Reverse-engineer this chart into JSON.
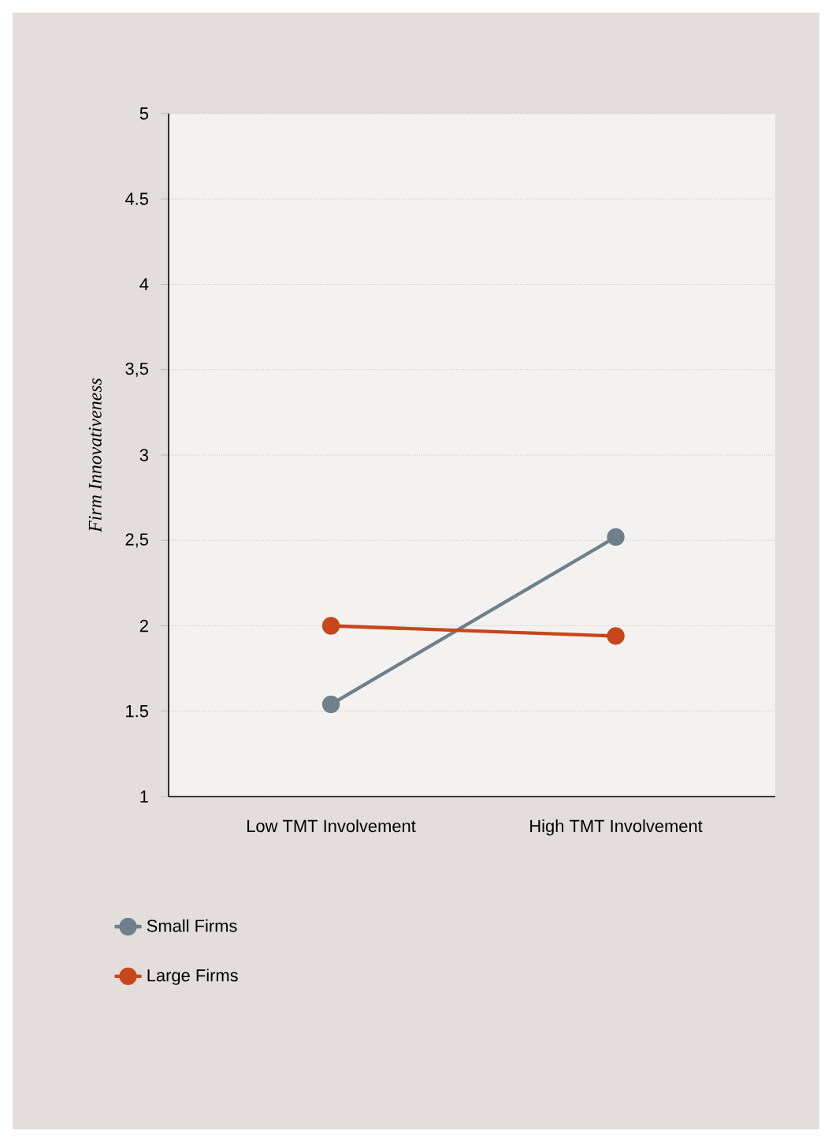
{
  "chart_data": {
    "type": "line",
    "ylabel": "Firm Innovativeness",
    "categories": [
      "Low TMT Involvement",
      "High TMT Involvement"
    ],
    "series": [
      {
        "name": "Small Firms",
        "color": "#6e808b",
        "values": [
          1.54,
          2.52
        ]
      },
      {
        "name": "Large Firms",
        "color": "#c8461c",
        "values": [
          2.0,
          1.94
        ]
      }
    ],
    "ylim": [
      1,
      5
    ],
    "yticks": [
      1,
      1.5,
      2,
      {
        "value": 2.5,
        "label": "2,5"
      },
      3,
      {
        "value": 3.5,
        "label": "3,5"
      },
      4,
      4.5,
      5
    ],
    "grid": "y",
    "legend": "bottom left",
    "marker": "circle",
    "line_style": "solid"
  }
}
